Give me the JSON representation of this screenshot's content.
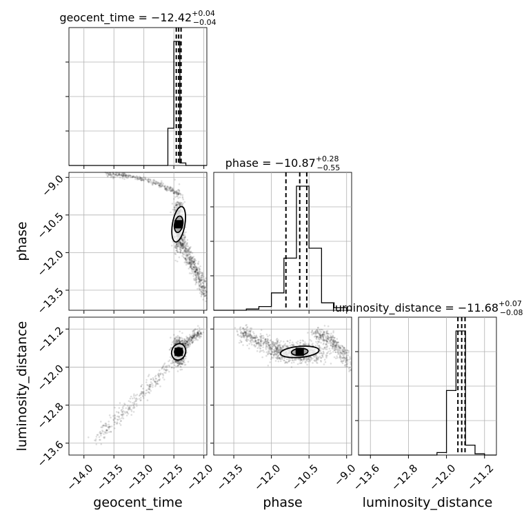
{
  "chart_data": {
    "type": "corner",
    "params": [
      "geocent_time",
      "phase",
      "luminosity_distance"
    ],
    "axis_labels": [
      "geocent_time",
      "phase",
      "luminosity_distance"
    ],
    "ranges": {
      "geocent_time": [
        -14.25,
        -11.95
      ],
      "phase": [
        -14.3,
        -8.8
      ],
      "luminosity_distance": [
        -13.85,
        -10.95
      ]
    },
    "ticks": {
      "geocent_time": [
        "−14.0",
        "−13.5",
        "−13.0",
        "−12.5",
        "−12.0"
      ],
      "phase": [
        "−13.5",
        "−12.0",
        "−10.5",
        "−9.0"
      ],
      "luminosity_distance": [
        "−13.6",
        "−12.8",
        "−12.0",
        "−11.2"
      ]
    },
    "tick_values": {
      "geocent_time": [
        -14.0,
        -13.5,
        -13.0,
        -12.5,
        -12.0
      ],
      "phase": [
        -13.5,
        -12.0,
        -10.5,
        -9.0
      ],
      "luminosity_distance": [
        -13.6,
        -12.8,
        -12.0,
        -11.2
      ]
    },
    "titles": [
      {
        "text": "geocent_time = −12.42",
        "sup": "+0.04",
        "sub": "−0.04"
      },
      {
        "text": "phase = −10.87",
        "sup": "+0.28",
        "sub": "−0.55"
      },
      {
        "text": "luminosity_distance = −11.68",
        "sup": "+0.07",
        "sub": "−0.08"
      }
    ],
    "quantiles": {
      "geocent_time": [
        -12.46,
        -12.42,
        -12.38
      ],
      "phase": [
        -11.42,
        -10.87,
        -10.59
      ],
      "luminosity_distance": [
        -11.76,
        -11.68,
        -11.61
      ]
    },
    "histograms": {
      "geocent_time": {
        "edges": [
          -12.6,
          -12.5,
          -12.4,
          -12.3,
          -12.2,
          -12.1,
          -12.0
        ],
        "counts": [
          0.3,
          1.0,
          0.02,
          0.0,
          0.0,
          0.0
        ]
      },
      "phase": {
        "edges": [
          -13.5,
          -13.0,
          -12.5,
          -12.0,
          -11.5,
          -11.0,
          -10.5,
          -10.0,
          -9.5,
          -9.0
        ],
        "counts": [
          0.0,
          0.01,
          0.03,
          0.14,
          0.42,
          1.0,
          0.5,
          0.06,
          0.02
        ]
      },
      "luminosity_distance": {
        "edges": [
          -12.2,
          -12.0,
          -11.8,
          -11.6,
          -11.4,
          -11.2
        ],
        "counts": [
          0.02,
          0.52,
          1.0,
          0.08,
          0.01
        ]
      }
    },
    "medians_2d": {
      "phase_vs_geocent_time": [
        -12.42,
        -10.87
      ],
      "luminosity_distance_vs_geocent_time": [
        -12.42,
        -11.68
      ],
      "luminosity_distance_vs_phase": [
        -10.87,
        -11.68
      ]
    },
    "grid": true
  }
}
